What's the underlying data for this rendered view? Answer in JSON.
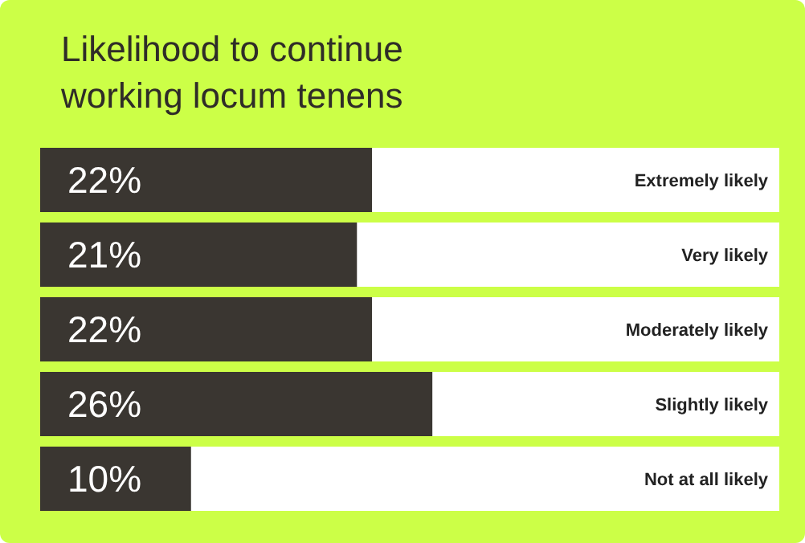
{
  "chart_data": {
    "type": "bar",
    "orientation": "horizontal",
    "title": "Likelihood to continue working locum tenens",
    "categories": [
      "Extremely likely",
      "Very likely",
      "Moderately likely",
      "Slightly likely",
      "Not at all likely"
    ],
    "values": [
      22,
      21,
      22,
      26,
      10
    ],
    "value_labels": [
      "22%",
      "21%",
      "22%",
      "26%",
      "10%"
    ],
    "color": "#3a3631",
    "xlim": [
      0,
      49
    ],
    "tick_labels": "y"
  }
}
